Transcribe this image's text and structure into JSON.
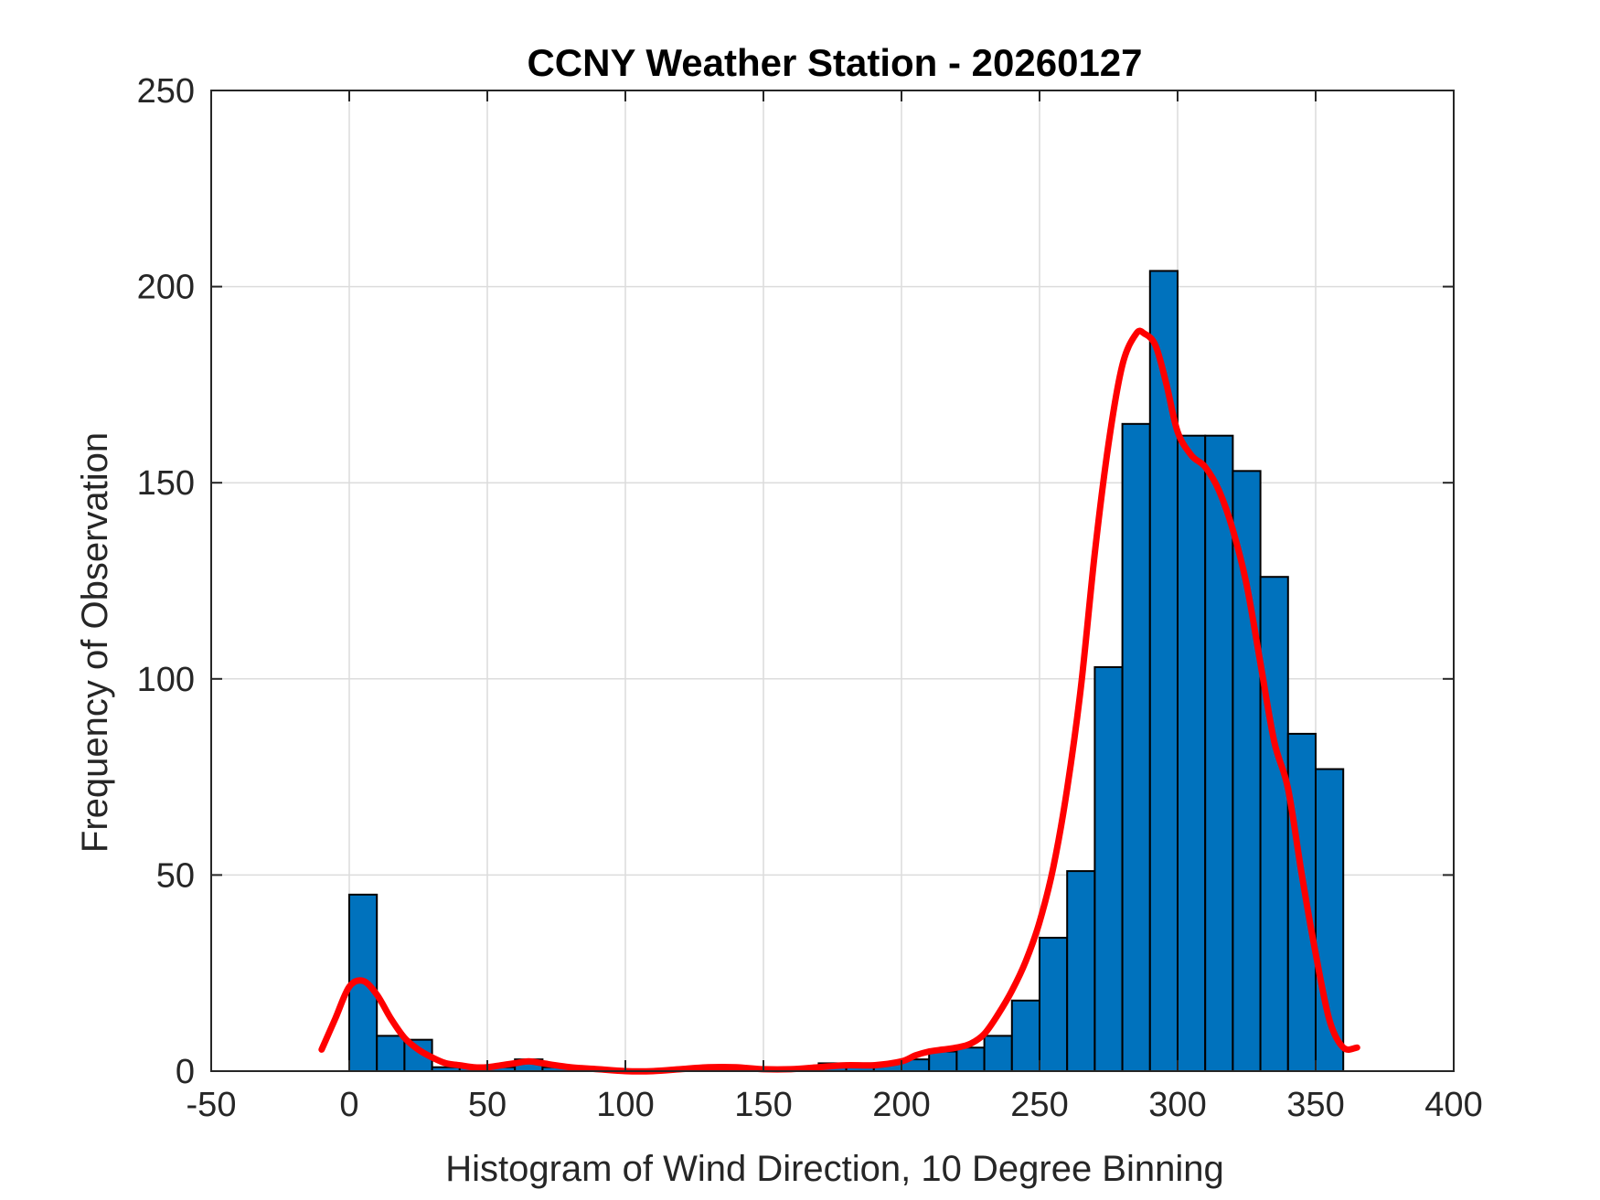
{
  "chart_data": {
    "type": "bar",
    "title": "CCNY Weather Station - 20260127",
    "xlabel": "Histogram of Wind Direction, 10 Degree Binning",
    "ylabel": "Frequency of Observation",
    "xlim": [
      -50,
      400
    ],
    "ylim": [
      0,
      250
    ],
    "xticks": [
      -50,
      0,
      50,
      100,
      150,
      200,
      250,
      300,
      350,
      400
    ],
    "yticks": [
      0,
      50,
      100,
      150,
      200,
      250
    ],
    "grid": true,
    "bin_width": 10,
    "bin_edges_start": [
      0,
      10,
      20,
      30,
      40,
      50,
      60,
      70,
      80,
      90,
      100,
      110,
      120,
      130,
      140,
      150,
      160,
      170,
      180,
      190,
      200,
      210,
      220,
      230,
      240,
      250,
      260,
      270,
      280,
      290,
      300,
      310,
      320,
      330,
      340,
      350
    ],
    "values": [
      45,
      9,
      8,
      1,
      1,
      1,
      3,
      1,
      0,
      0,
      0,
      0,
      0,
      0,
      0,
      0,
      0,
      2,
      2,
      2,
      3,
      5,
      6,
      9,
      18,
      34,
      51,
      103,
      165,
      204,
      162,
      162,
      153,
      126,
      86,
      77
    ],
    "colors": {
      "bars": "#0072BD",
      "bar_edge": "#000000",
      "fit_line": "#FF0000"
    },
    "fit_curve": {
      "x": [
        -10,
        -5,
        0,
        5,
        10,
        15,
        20,
        25,
        30,
        35,
        40,
        45,
        50,
        55,
        60,
        65,
        70,
        80,
        90,
        100,
        110,
        120,
        130,
        140,
        150,
        160,
        170,
        180,
        190,
        200,
        205,
        210,
        215,
        220,
        225,
        230,
        235,
        240,
        245,
        250,
        255,
        260,
        265,
        270,
        275,
        280,
        285,
        288,
        292,
        296,
        300,
        305,
        310,
        315,
        320,
        325,
        330,
        335,
        340,
        345,
        350,
        355,
        360,
        365
      ],
      "y": [
        5.5,
        13.5,
        21.5,
        23,
        19.5,
        13.5,
        8.5,
        5.5,
        3.5,
        2,
        1.5,
        1,
        1,
        1.5,
        2,
        2.5,
        2,
        1,
        0.5,
        0,
        0,
        0.5,
        1,
        1,
        0.5,
        0.5,
        1,
        1.5,
        1.5,
        2.5,
        4,
        5,
        5.5,
        6,
        7,
        9.5,
        14.5,
        20.5,
        28,
        38,
        52,
        72,
        98,
        132,
        160,
        180,
        188,
        188,
        185,
        175,
        163,
        157,
        154,
        148,
        138,
        124,
        104,
        84,
        72,
        50,
        30,
        13,
        6,
        6
      ]
    }
  }
}
